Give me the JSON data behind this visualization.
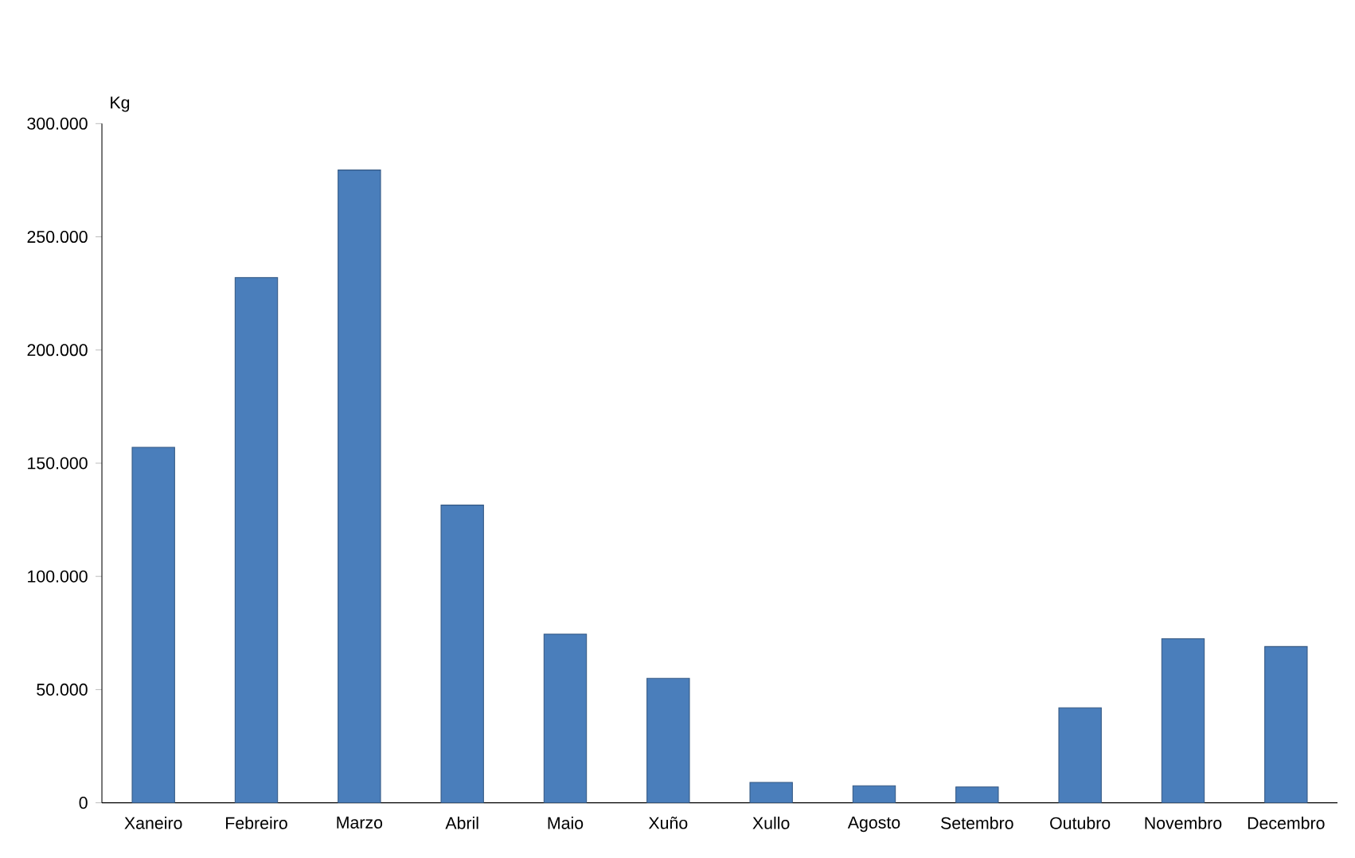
{
  "chart_data": {
    "type": "bar",
    "ylabel": "Kg",
    "categories": [
      "Xaneiro",
      "Febreiro",
      "Marzo",
      "Abril",
      "Maio",
      "Xuño",
      "Xullo",
      "Agosto",
      "Setembro",
      "Outubro",
      "Novembro",
      "Decembro"
    ],
    "values": [
      157000,
      232000,
      279500,
      131500,
      74500,
      55000,
      9000,
      7500,
      7000,
      42000,
      72500,
      69000
    ],
    "color": "#4a7ebb",
    "ylim": [
      0,
      300000
    ],
    "yticks": [
      0,
      {
        "value": 50000,
        "label": "50.000"
      },
      {
        "value": 100000,
        "label": "100.000"
      },
      {
        "value": 150000,
        "label": "150.000"
      },
      {
        "value": 200000,
        "label": "200.000"
      },
      {
        "value": 250000,
        "label": "250.000"
      },
      {
        "value": 300000,
        "label": "300.000"
      }
    ],
    "grid": false
  }
}
